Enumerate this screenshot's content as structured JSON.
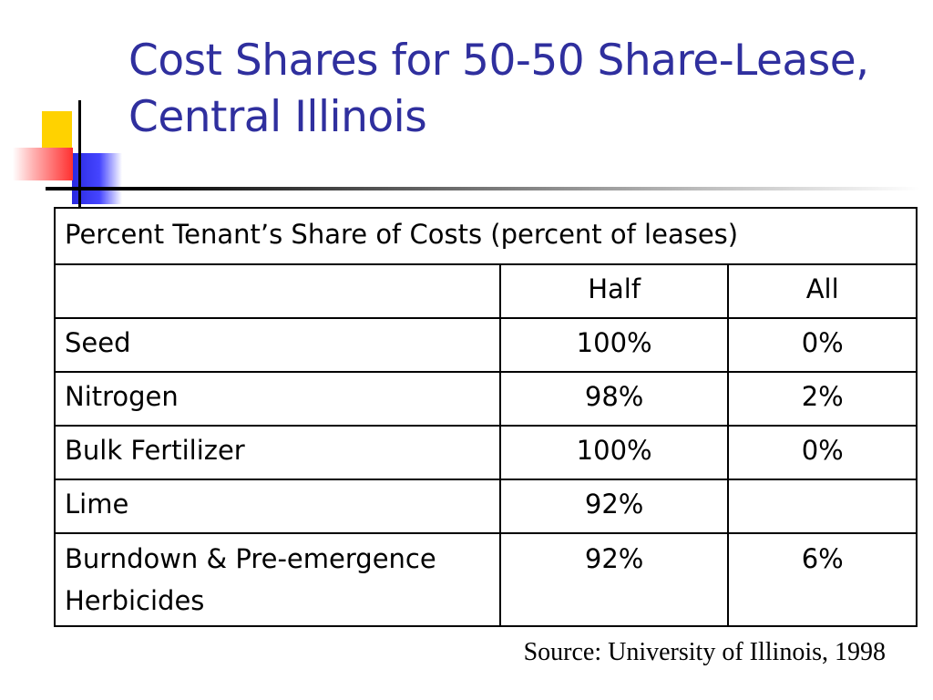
{
  "slide": {
    "title": "Cost Shares for 50-50 Share-Lease, Central Illinois",
    "source": "Source: University of Illinois, 1998"
  },
  "table": {
    "caption": "Percent Tenant’s Share of Costs (percent of leases)",
    "columns": [
      "",
      "Half",
      "All"
    ],
    "rows": [
      {
        "item": "Seed",
        "half": "100%",
        "all": "0%"
      },
      {
        "item": "Nitrogen",
        "half": "98%",
        "all": "2%"
      },
      {
        "item": "Bulk Fertilizer",
        "half": "100%",
        "all": "0%"
      },
      {
        "item": "Lime",
        "half": "92%",
        "all": ""
      },
      {
        "item": "Burndown & Pre-emergence Herbicides",
        "half": "92%",
        "all": "6%"
      }
    ]
  },
  "colors": {
    "title": "#2f2f9e",
    "accent_yellow": "#ffd200",
    "accent_blue": "#2a2ae0",
    "accent_red": "#ff3030"
  }
}
